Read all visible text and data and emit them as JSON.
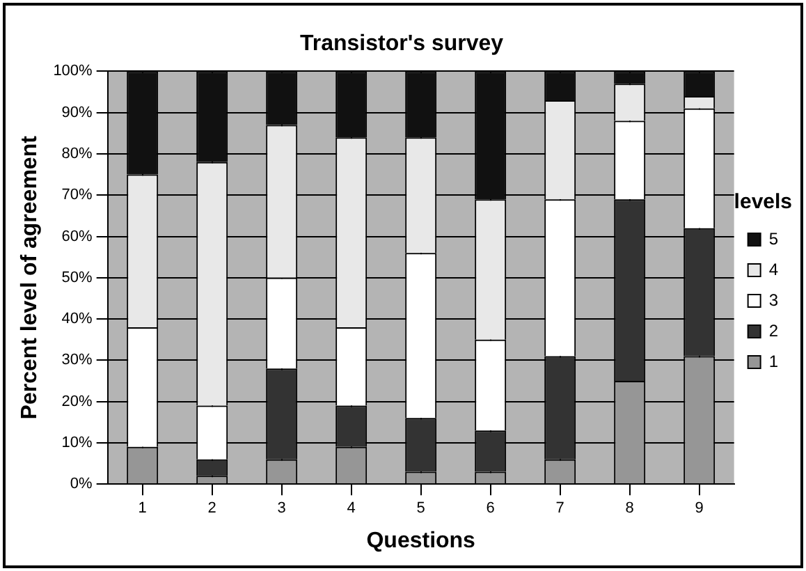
{
  "chart_data": {
    "type": "bar",
    "title": "Transistor's survey",
    "xlabel": "Questions",
    "ylabel": "Percent level of agreement",
    "legend_title": "levels",
    "categories": [
      "1",
      "2",
      "3",
      "4",
      "5",
      "6",
      "7",
      "8",
      "9"
    ],
    "stacked": true,
    "ylim": [
      0,
      100
    ],
    "yticks": [
      {
        "value": 0,
        "label": "0%"
      },
      {
        "value": 10,
        "label": "10%"
      },
      {
        "value": 20,
        "label": "20%"
      },
      {
        "value": 30,
        "label": "30%"
      },
      {
        "value": 40,
        "label": "40%"
      },
      {
        "value": 50,
        "label": "50%"
      },
      {
        "value": 60,
        "label": "60%"
      },
      {
        "value": 70,
        "label": "70%"
      },
      {
        "value": 80,
        "label": "80%"
      },
      {
        "value": 90,
        "label": "90%"
      },
      {
        "value": 100,
        "label": "100%"
      }
    ],
    "grid": true,
    "legend": "right",
    "series": [
      {
        "name": "1",
        "color": "#969696",
        "values": [
          9,
          2,
          6,
          9,
          3,
          3,
          6,
          25,
          31
        ]
      },
      {
        "name": "2",
        "color": "#333333",
        "values": [
          0,
          4,
          22,
          10,
          13,
          10,
          25,
          44,
          31
        ]
      },
      {
        "name": "3",
        "color": "#ffffff",
        "values": [
          29,
          13,
          22,
          19,
          40,
          22,
          38,
          19,
          29
        ]
      },
      {
        "name": "4",
        "color": "#e8e8e8",
        "values": [
          37,
          59,
          37,
          46,
          28,
          34,
          24,
          9,
          3
        ]
      },
      {
        "name": "5",
        "color": "#111111",
        "values": [
          25,
          22,
          13,
          16,
          16,
          31,
          7,
          3,
          6
        ]
      }
    ]
  }
}
